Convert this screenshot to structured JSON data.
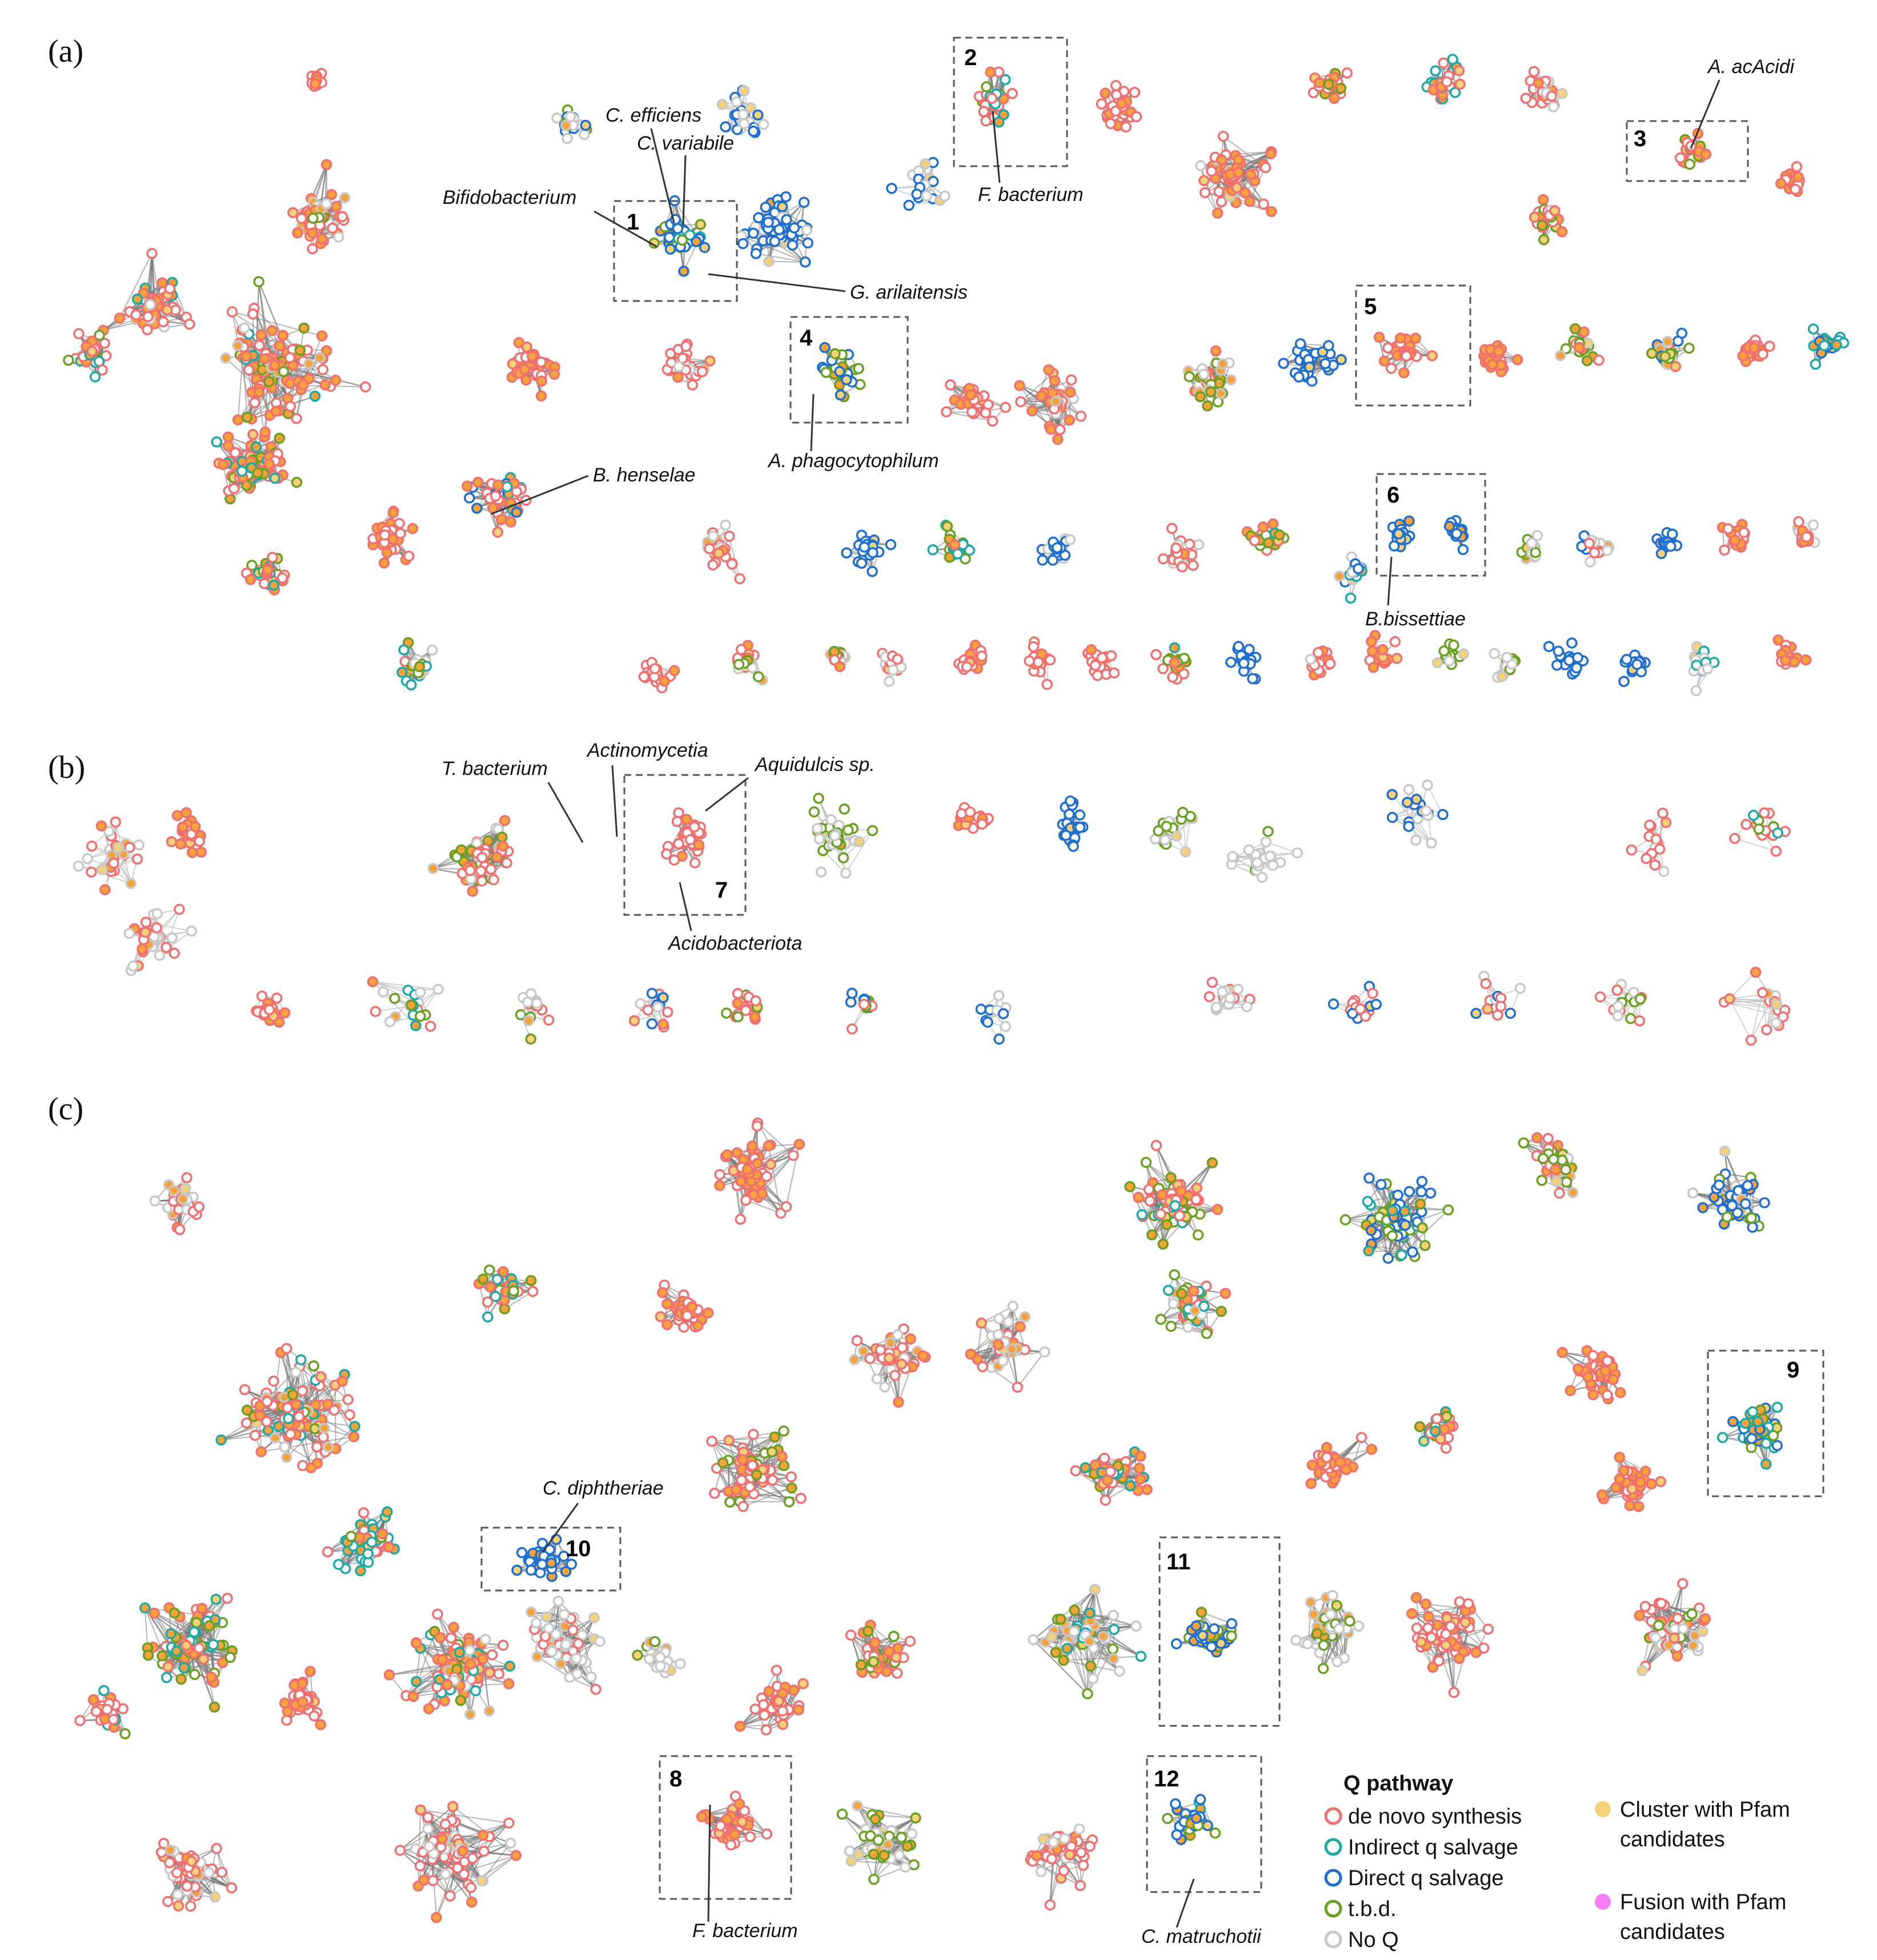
{
  "figure": {
    "panels": [
      {
        "id": "a",
        "label": "(a)"
      },
      {
        "id": "b",
        "label": "(b)"
      },
      {
        "id": "c",
        "label": "(c)"
      }
    ],
    "species_labels": [
      "C. efficiens",
      "C. variabile",
      "Bifidobacterium",
      "G. arilaitensis",
      "F. bacterium",
      "A. acAcidi",
      "A. phagocytophilum",
      "B. henselae",
      "B.bissettiae",
      "T. bacterium",
      "Actinomycetia",
      "Aquidulcis sp.",
      "Acidobacteriota",
      "C. diphtheriae",
      "F. bacterium",
      "C. matruchotii"
    ],
    "box_numbers": [
      "1",
      "2",
      "3",
      "4",
      "5",
      "6",
      "7",
      "8",
      "9",
      "10",
      "11",
      "12"
    ]
  },
  "legend": {
    "title": "Q pathway",
    "items": [
      {
        "label": "de novo synthesis",
        "color": "#f07070",
        "style": "ring"
      },
      {
        "label": "Indirect q salvage",
        "color": "#20a8a8",
        "style": "ring"
      },
      {
        "label": "Direct q salvage",
        "color": "#1f6fd1",
        "style": "ring"
      },
      {
        "label": "t.b.d.",
        "color": "#6aa021",
        "style": "ring"
      },
      {
        "label": "No Q",
        "color": "#c8c8c8",
        "style": "ring"
      }
    ],
    "fill_items": [
      {
        "label_line1": "Cluster with Pfam",
        "label_line2": "candidates",
        "color": "#f5d27a"
      },
      {
        "label_line1": "Fusion with Pfam",
        "label_line2": "candidates",
        "color": "#f57ef0"
      }
    ]
  },
  "colors": {
    "denovo": "#f07070",
    "indirect": "#20a8a8",
    "direct": "#1f6fd1",
    "tbd": "#6aa021",
    "noq": "#c8c8c8",
    "orange": "#f7a23a",
    "pfam": "#f5d27a",
    "fusion": "#f57ef0",
    "edge": "#7a7a7a",
    "edge_light": "#c4c4c4"
  }
}
